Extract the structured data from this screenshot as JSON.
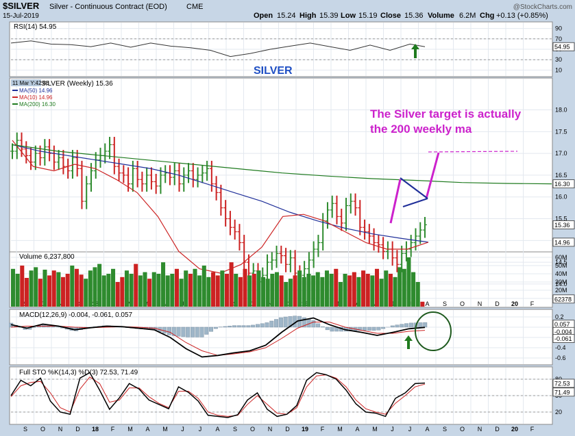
{
  "header": {
    "symbol": "$SILVER",
    "name": "Silver - Continuous Contract (EOD)",
    "exchange": "CME",
    "date": "15-Jul-2019",
    "brand": "@StockCharts.com",
    "open_label": "Open",
    "open": "15.24",
    "high_label": "High",
    "high": "15.39",
    "low_label": "Low",
    "low": "15.19",
    "close_label": "Close",
    "close": "15.36",
    "volume_label": "Volume",
    "volume": "6.2M",
    "chg_label": "Chg",
    "chg": "+0.13 (+0.85%)"
  },
  "annotations": {
    "silver_title": "SILVER",
    "target_note_line1": "The Silver target is actually",
    "target_note_line2": "the 200 weekly ma"
  },
  "colors": {
    "bg": "#c7d6e6",
    "panel": "#ffffff",
    "up": "#2e8b2e",
    "down": "#cc2222",
    "ma50": "#1f2f99",
    "ma10": "#cc2222",
    "ma200": "#1e7a1e",
    "annotation": "#cc22cc",
    "silver_title": "#1f4fc4"
  },
  "chart_data": [
    {
      "type": "line",
      "panel": "rsi",
      "title": "RSI(14) 54.95",
      "ylim": [
        0,
        100
      ],
      "yticks": [
        "90",
        "70",
        "50",
        "30",
        "10"
      ],
      "last_value_label": "54.95",
      "x": [
        0,
        4,
        8,
        12,
        16,
        20,
        24,
        28,
        32,
        36,
        40,
        44,
        48,
        52,
        56,
        60,
        64,
        68,
        72,
        76,
        80,
        83
      ],
      "values": [
        62,
        66,
        60,
        59,
        55,
        62,
        54,
        62,
        56,
        53,
        48,
        36,
        42,
        50,
        56,
        62,
        55,
        48,
        58,
        48,
        60,
        55
      ]
    },
    {
      "type": "bar",
      "panel": "price",
      "subtype": "ohlc",
      "legend_header": "11 Mar Y:42.86",
      "legend": [
        "SILVER (Weekly) 15.36",
        "MA(50) 14.96",
        "MA(10) 14.96",
        "MA(200) 16.30"
      ],
      "ylim": [
        13.7,
        18.7
      ],
      "yticks": [
        "18.0",
        "17.5",
        "17.0",
        "16.5",
        "16.0",
        "15.5",
        "15.0",
        "14.5",
        "14.0"
      ],
      "last_value_labels": [
        "16.30",
        "15.36",
        "14.96"
      ],
      "x_months": [
        "S",
        "O",
        "N",
        "D",
        "18",
        "F",
        "M",
        "A",
        "M",
        "J",
        "J",
        "A",
        "S",
        "O",
        "N",
        "D",
        "19",
        "F",
        "M",
        "A",
        "M",
        "J",
        "J",
        "A",
        "S",
        "O",
        "N",
        "D",
        "20",
        "F"
      ],
      "closes": [
        17.05,
        17.3,
        17.1,
        16.95,
        16.8,
        17.0,
        16.9,
        17.15,
        17.0,
        16.8,
        16.9,
        16.7,
        16.6,
        16.9,
        16.65,
        15.9,
        16.3,
        16.6,
        16.85,
        16.95,
        17.05,
        17.2,
        16.7,
        16.55,
        16.5,
        16.3,
        16.65,
        16.4,
        16.3,
        16.5,
        16.35,
        16.25,
        16.5,
        16.55,
        16.45,
        16.6,
        16.3,
        16.5,
        16.6,
        16.4,
        16.5,
        16.55,
        16.65,
        16.3,
        16.1,
        15.75,
        15.5,
        15.3,
        15.2,
        14.95,
        14.5,
        14.25,
        14.3,
        14.05,
        14.2,
        14.5,
        14.55,
        14.7,
        14.65,
        14.45,
        14.6,
        14.25,
        14.2,
        14.35,
        14.55,
        14.8,
        14.95,
        15.45,
        15.7,
        15.85,
        15.55,
        15.4,
        15.8,
        15.9,
        15.75,
        15.3,
        15.2,
        15.1,
        14.95,
        14.9,
        14.75,
        14.8,
        14.6,
        14.45,
        14.7,
        14.8,
        14.95,
        15.1,
        15.24,
        15.36
      ],
      "series": [
        {
          "name": "MA(50)",
          "values": [
            17.2,
            17.05,
            16.95,
            16.85,
            16.75,
            16.65,
            16.5,
            16.3,
            16.1,
            15.9,
            15.65,
            15.45,
            15.28,
            15.15,
            15.05,
            14.96
          ]
        },
        {
          "name": "MA(10)",
          "values": [
            17.3,
            16.7,
            16.6,
            16.75,
            16.65,
            16.4,
            16.1,
            15.55,
            14.75,
            14.35,
            14.25,
            14.45,
            14.85,
            15.55,
            15.6,
            15.45,
            15.2,
            14.95,
            14.8,
            14.8,
            14.96
          ]
        },
        {
          "name": "MA(200)",
          "values": [
            17.2,
            17.05,
            16.95,
            16.85,
            16.75,
            16.65,
            16.55,
            16.48,
            16.42,
            16.38,
            16.33,
            16.31,
            16.3
          ]
        }
      ]
    },
    {
      "type": "bar",
      "panel": "volume",
      "title": "Volume 6,237,800",
      "yticks": [
        "60M",
        "50M",
        "40M",
        "30M",
        "20M",
        "10M"
      ],
      "last_value_label": "62378",
      "ylim": [
        0,
        65
      ],
      "values": [
        46,
        40,
        50,
        35,
        44,
        48,
        34,
        45,
        38,
        44,
        42,
        36,
        40,
        50,
        46,
        39,
        34,
        44,
        48,
        52,
        38,
        40,
        46,
        30,
        36,
        44,
        40,
        52,
        38,
        42,
        34,
        42,
        40,
        54,
        38,
        40,
        46,
        34,
        44,
        40,
        46,
        38,
        50,
        36,
        42,
        38,
        44,
        40,
        54,
        40,
        36,
        46,
        38,
        40,
        44,
        36,
        34,
        40,
        42,
        38,
        30,
        34,
        38,
        44,
        36,
        40,
        38,
        42,
        36,
        44,
        40,
        46,
        30,
        40,
        38,
        42,
        36,
        44,
        40,
        38,
        46,
        34,
        44,
        40,
        36,
        48,
        46,
        60,
        42,
        30,
        6
      ]
    },
    {
      "type": "line",
      "panel": "macd",
      "title": "MACD(12,26,9) -0.004, -0.061, 0.057",
      "ylim": [
        -0.72,
        0.32
      ],
      "yticks": [
        "0.2",
        "0.0",
        "-0.2",
        "-0.4",
        "-0.6"
      ],
      "last_value_labels": [
        "0.057",
        "-0.004",
        "-0.061"
      ],
      "series": [
        {
          "name": "MACD",
          "values": [
            0.05,
            -0.02,
            0.06,
            0.02,
            -0.05,
            -0.01,
            0.02,
            0.01,
            -0.02,
            -0.05,
            -0.2,
            -0.42,
            -0.58,
            -0.55,
            -0.5,
            -0.46,
            -0.35,
            -0.1,
            0.12,
            0.18,
            0.05,
            -0.05,
            -0.1,
            -0.16,
            -0.1,
            -0.03,
            -0.004
          ]
        },
        {
          "name": "Signal",
          "values": [
            0.0,
            0.02,
            0.02,
            0.02,
            0.0,
            -0.01,
            0.0,
            0.01,
            0.0,
            -0.02,
            -0.1,
            -0.3,
            -0.46,
            -0.55,
            -0.52,
            -0.48,
            -0.4,
            -0.22,
            -0.02,
            0.1,
            0.1,
            0.0,
            -0.06,
            -0.12,
            -0.12,
            -0.08,
            -0.061
          ]
        }
      ]
    },
    {
      "type": "line",
      "panel": "stochastic",
      "title": "Full STO %K(14,3) %D(3) 72.53, 71.49",
      "ylim": [
        0,
        100
      ],
      "yticks": [
        "80",
        "50",
        "20"
      ],
      "last_value_labels": [
        "72.53",
        "71.49"
      ],
      "series": [
        {
          "name": "%K",
          "values": [
            50,
            78,
            68,
            82,
            40,
            20,
            16,
            82,
            92,
            60,
            25,
            46,
            72,
            62,
            42,
            34,
            26,
            66,
            56,
            40,
            14,
            12,
            10,
            15,
            42,
            55,
            25,
            12,
            16,
            32,
            78,
            92,
            88,
            80,
            60,
            35,
            20,
            18,
            12,
            45,
            55,
            72,
            73
          ]
        },
        {
          "name": "%D",
          "values": [
            48,
            68,
            74,
            76,
            55,
            28,
            20,
            62,
            84,
            72,
            38,
            42,
            64,
            64,
            48,
            36,
            28,
            58,
            58,
            45,
            20,
            14,
            12,
            14,
            34,
            50,
            34,
            18,
            16,
            28,
            66,
            86,
            88,
            82,
            66,
            42,
            26,
            20,
            16,
            36,
            50,
            66,
            71
          ]
        }
      ]
    }
  ]
}
